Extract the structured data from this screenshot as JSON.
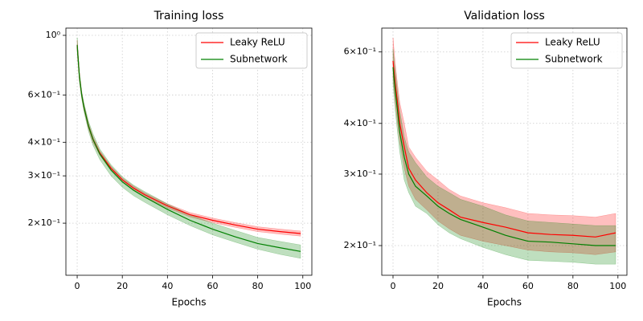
{
  "chart_data": [
    {
      "type": "line",
      "title": "Training loss",
      "x_label": "Epochs",
      "yscale": "log",
      "grid": true,
      "legend": "upper right",
      "x": [
        0,
        1,
        2,
        3,
        5,
        7,
        10,
        15,
        20,
        25,
        30,
        40,
        50,
        60,
        70,
        80,
        90,
        99
      ],
      "xlim": [
        -5,
        104
      ],
      "xticks": [
        0,
        20,
        40,
        60,
        80,
        100
      ],
      "ylim": [
        0.128,
        1.064
      ],
      "yticks": [
        {
          "value": 1,
          "label": "10⁰"
        },
        {
          "value": 0.6,
          "label": "6×10⁻¹"
        },
        {
          "value": 0.4,
          "label": "4×10⁻¹"
        },
        {
          "value": 0.3,
          "label": "3×10⁻¹"
        },
        {
          "value": 0.2,
          "label": "2×10⁻¹"
        }
      ],
      "series": [
        {
          "name": "Leaky ReLU",
          "color": "#ff0000",
          "values": [
            0.92,
            0.7,
            0.6,
            0.54,
            0.46,
            0.41,
            0.365,
            0.32,
            0.29,
            0.27,
            0.255,
            0.232,
            0.215,
            0.205,
            0.197,
            0.19,
            0.186,
            0.183
          ],
          "lower": [
            0.88,
            0.68,
            0.59,
            0.53,
            0.45,
            0.4,
            0.358,
            0.314,
            0.285,
            0.266,
            0.251,
            0.228,
            0.211,
            0.201,
            0.193,
            0.186,
            0.182,
            0.179
          ],
          "upper": [
            0.96,
            0.72,
            0.61,
            0.55,
            0.47,
            0.42,
            0.372,
            0.326,
            0.295,
            0.275,
            0.259,
            0.236,
            0.219,
            0.209,
            0.201,
            0.194,
            0.19,
            0.187
          ]
        },
        {
          "name": "Subnetwork",
          "color": "#008000",
          "values": [
            0.92,
            0.7,
            0.6,
            0.54,
            0.46,
            0.41,
            0.362,
            0.315,
            0.285,
            0.265,
            0.25,
            0.225,
            0.205,
            0.19,
            0.178,
            0.168,
            0.162,
            0.157
          ],
          "lower": [
            0.86,
            0.67,
            0.58,
            0.52,
            0.44,
            0.39,
            0.345,
            0.3,
            0.272,
            0.253,
            0.239,
            0.215,
            0.196,
            0.181,
            0.17,
            0.16,
            0.153,
            0.148
          ],
          "upper": [
            0.98,
            0.73,
            0.62,
            0.56,
            0.48,
            0.43,
            0.378,
            0.33,
            0.298,
            0.277,
            0.262,
            0.236,
            0.215,
            0.2,
            0.188,
            0.177,
            0.171,
            0.166
          ]
        }
      ]
    },
    {
      "type": "line",
      "title": "Validation loss",
      "x_label": "Epochs",
      "yscale": "log",
      "grid": true,
      "legend": "upper right",
      "x": [
        0,
        1,
        2,
        3,
        5,
        7,
        10,
        15,
        20,
        25,
        30,
        40,
        50,
        60,
        70,
        80,
        90,
        99
      ],
      "xlim": [
        -5,
        104
      ],
      "xticks": [
        0,
        20,
        40,
        60,
        80,
        100
      ],
      "ylim": [
        0.169,
        0.687
      ],
      "yticks": [
        {
          "value": 0.6,
          "label": "6×10⁻¹"
        },
        {
          "value": 0.4,
          "label": "4×10⁻¹"
        },
        {
          "value": 0.3,
          "label": "3×10⁻¹"
        },
        {
          "value": 0.2,
          "label": "2×10⁻¹"
        }
      ],
      "series": [
        {
          "name": "Leaky ReLU",
          "color": "#ff0000",
          "values": [
            0.57,
            0.5,
            0.45,
            0.4,
            0.35,
            0.31,
            0.29,
            0.27,
            0.255,
            0.245,
            0.235,
            0.228,
            0.222,
            0.215,
            0.213,
            0.212,
            0.21,
            0.215
          ],
          "lower": [
            0.52,
            0.45,
            0.4,
            0.36,
            0.31,
            0.28,
            0.26,
            0.245,
            0.23,
            0.22,
            0.212,
            0.205,
            0.2,
            0.195,
            0.193,
            0.192,
            0.19,
            0.193
          ],
          "upper": [
            0.65,
            0.56,
            0.5,
            0.45,
            0.4,
            0.35,
            0.33,
            0.305,
            0.29,
            0.275,
            0.265,
            0.255,
            0.248,
            0.24,
            0.238,
            0.237,
            0.235,
            0.24
          ]
        },
        {
          "name": "Subnetwork",
          "color": "#008000",
          "values": [
            0.55,
            0.48,
            0.43,
            0.38,
            0.33,
            0.3,
            0.28,
            0.265,
            0.25,
            0.24,
            0.232,
            0.222,
            0.212,
            0.205,
            0.204,
            0.202,
            0.2,
            0.2
          ],
          "lower": [
            0.5,
            0.43,
            0.38,
            0.34,
            0.29,
            0.27,
            0.25,
            0.24,
            0.225,
            0.215,
            0.208,
            0.198,
            0.19,
            0.184,
            0.183,
            0.182,
            0.18,
            0.18
          ],
          "upper": [
            0.61,
            0.54,
            0.48,
            0.43,
            0.37,
            0.34,
            0.32,
            0.295,
            0.28,
            0.27,
            0.26,
            0.25,
            0.238,
            0.23,
            0.228,
            0.226,
            0.224,
            0.224
          ]
        }
      ]
    }
  ]
}
